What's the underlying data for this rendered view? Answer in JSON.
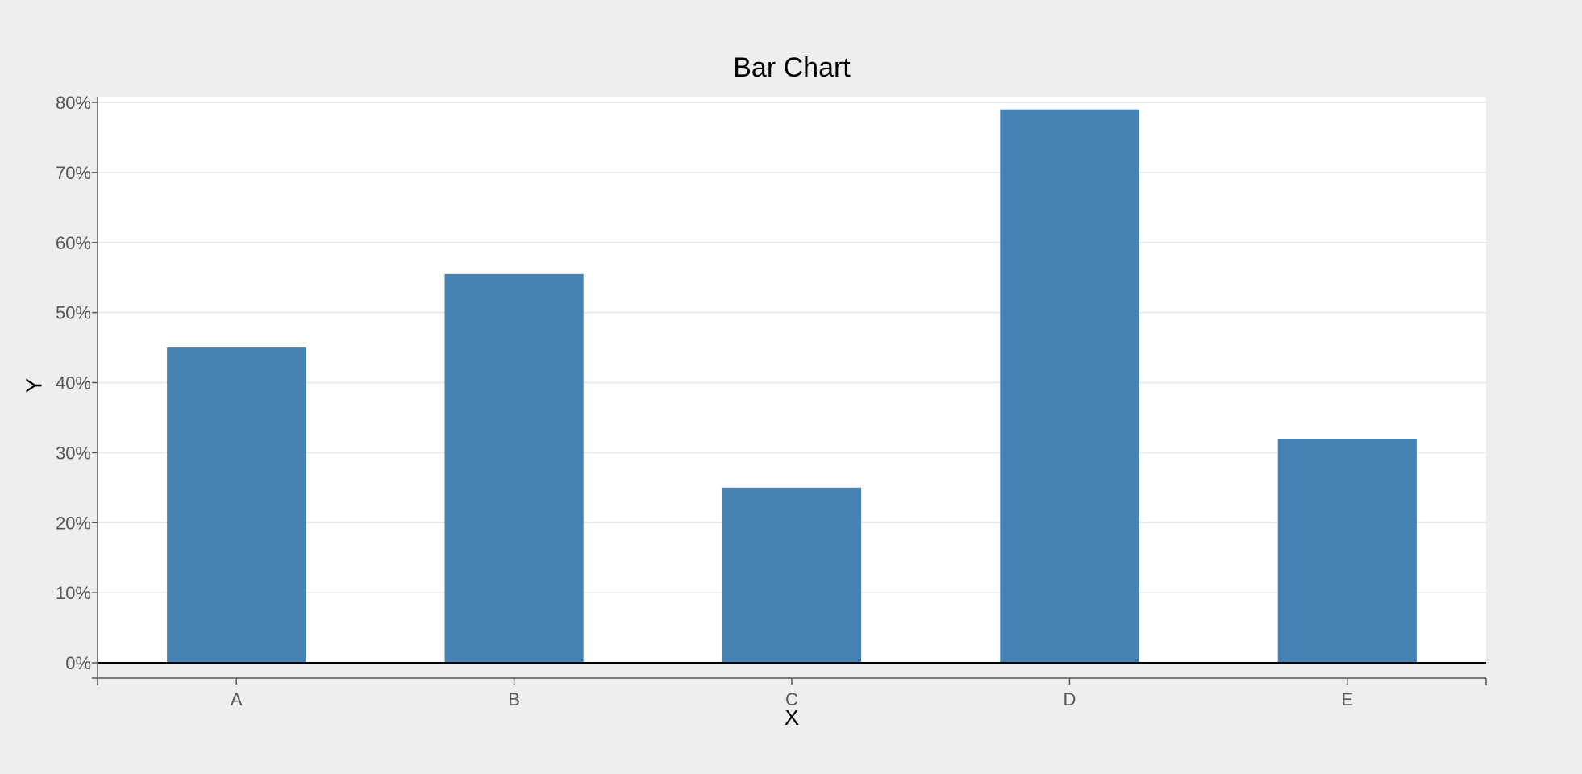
{
  "chart_data": {
    "type": "bar",
    "title": "Bar Chart",
    "xlabel": "X",
    "ylabel": "Y",
    "categories": [
      "A",
      "B",
      "C",
      "D",
      "E"
    ],
    "values": [
      0.45,
      0.555,
      0.25,
      0.79,
      0.32
    ],
    "ylim": [
      0,
      0.8
    ],
    "yticks": [
      0,
      0.1,
      0.2,
      0.3,
      0.4,
      0.5,
      0.6,
      0.7,
      0.8
    ],
    "ytick_labels": [
      "0%",
      "10%",
      "20%",
      "30%",
      "40%",
      "50%",
      "60%",
      "70%",
      "80%"
    ],
    "grid": true,
    "legend": false,
    "colors": {
      "bar": "#4682b4",
      "background": "#eeeeee",
      "plot_background": "#ffffff",
      "grid": "#e6e6e6",
      "axis": "#555555"
    }
  }
}
